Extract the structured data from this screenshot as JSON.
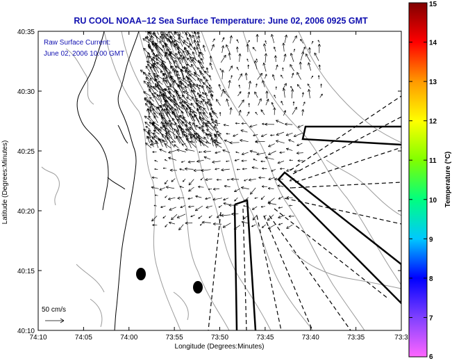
{
  "title": "RU COOL  NOAA–12  Sea Surface Temperature:  June 02, 2006 0925 GMT",
  "current_label": "Raw Surface Current:",
  "current_time": "June 02, 2006 10:00 GMT",
  "scale_label": "50 cm/s",
  "colorbar_label": "Temperature (°C)",
  "colors": {
    "title": "#1010b0",
    "frame": "#000000",
    "coast": "#000000",
    "contour": "#9a9a9a"
  },
  "chart_data": {
    "type": "map",
    "xlabel": "Longitude (Degrees:Minutes)",
    "ylabel": "Latitude (Degrees:Minutes)",
    "x_ticks": [
      "74:10",
      "74:05",
      "74:00",
      "73:55",
      "73:50",
      "73:45",
      "73:40",
      "73:35",
      "73:3"
    ],
    "y_ticks": [
      "40:10",
      "40:15",
      "40:20",
      "40:25",
      "40:30",
      "40:35"
    ],
    "colorbar": {
      "ticks": [
        "6",
        "7",
        "8",
        "9",
        "10",
        "11",
        "12",
        "13",
        "14",
        "15"
      ],
      "range": [
        6,
        15
      ],
      "stops": [
        "#ff66ff",
        "#8040ff",
        "#0000ff",
        "#00c8ff",
        "#00ff80",
        "#80ff00",
        "#ffff00",
        "#ff9900",
        "#ff0000",
        "#800000"
      ]
    }
  }
}
